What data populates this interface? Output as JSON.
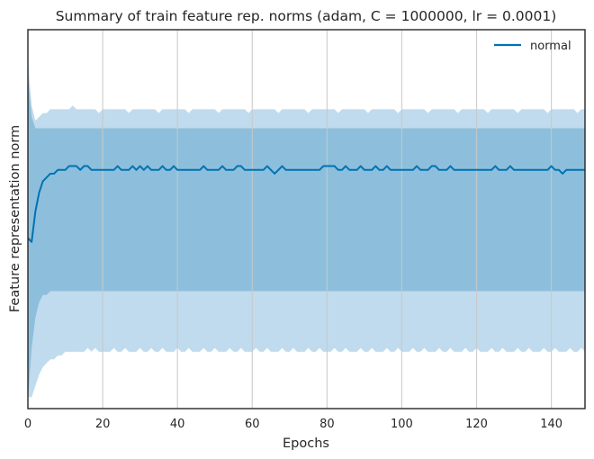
{
  "chart_data": {
    "type": "line",
    "title": "Summary of train feature rep. norms (adam, C = 1000000, lr = 0.0001)",
    "xlabel": "Epochs",
    "ylabel": "Feature representation norm",
    "xlim": [
      0,
      149
    ],
    "ylim": [
      0,
      1
    ],
    "x_ticks": [
      0,
      20,
      40,
      60,
      80,
      100,
      120,
      140
    ],
    "x_tick_labels": [
      "0",
      "20",
      "40",
      "60",
      "80",
      "100",
      "120",
      "140"
    ],
    "y_ticks_shown": false,
    "grid": "vertical",
    "legend_position": "top-right",
    "series": [
      {
        "name": "normal",
        "color": "#0072b2",
        "mean": [
          0.45,
          0.44,
          0.52,
          0.57,
          0.6,
          0.61,
          0.62,
          0.62,
          0.63,
          0.63,
          0.63,
          0.64,
          0.64,
          0.64,
          0.63,
          0.64,
          0.64,
          0.63,
          0.63,
          0.63,
          0.63,
          0.63,
          0.63,
          0.63,
          0.64,
          0.63,
          0.63,
          0.63,
          0.64,
          0.63,
          0.64,
          0.63,
          0.64,
          0.63,
          0.63,
          0.63,
          0.64,
          0.63,
          0.63,
          0.64,
          0.63,
          0.63,
          0.63,
          0.63,
          0.63,
          0.63,
          0.63,
          0.64,
          0.63,
          0.63,
          0.63,
          0.63,
          0.64,
          0.63,
          0.63,
          0.63,
          0.64,
          0.64,
          0.63,
          0.63,
          0.63,
          0.63,
          0.63,
          0.63,
          0.64,
          0.63,
          0.62,
          0.63,
          0.64,
          0.63,
          0.63,
          0.63,
          0.63,
          0.63,
          0.63,
          0.63,
          0.63,
          0.63,
          0.63,
          0.64,
          0.64,
          0.64,
          0.64,
          0.63,
          0.63,
          0.64,
          0.63,
          0.63,
          0.63,
          0.64,
          0.63,
          0.63,
          0.63,
          0.64,
          0.63,
          0.63,
          0.64,
          0.63,
          0.63,
          0.63,
          0.63,
          0.63,
          0.63,
          0.63,
          0.64,
          0.63,
          0.63,
          0.63,
          0.64,
          0.64,
          0.63,
          0.63,
          0.63,
          0.64,
          0.63,
          0.63,
          0.63,
          0.63,
          0.63,
          0.63,
          0.63,
          0.63,
          0.63,
          0.63,
          0.63,
          0.64,
          0.63,
          0.63,
          0.63,
          0.64,
          0.63,
          0.63,
          0.63,
          0.63,
          0.63,
          0.63,
          0.63,
          0.63,
          0.63,
          0.63,
          0.64,
          0.63,
          0.63,
          0.62,
          0.63,
          0.63,
          0.63,
          0.63,
          0.63,
          0.63
        ],
        "band_inner": {
          "lower": [
            0.02,
            0.16,
            0.24,
            0.28,
            0.3,
            0.3,
            0.31,
            0.31,
            0.31,
            0.31,
            0.31,
            0.31,
            0.31,
            0.31,
            0.31,
            0.31,
            0.31,
            0.31,
            0.31,
            0.31,
            0.31,
            0.31,
            0.31,
            0.31,
            0.31,
            0.31,
            0.31,
            0.31,
            0.31,
            0.31,
            0.31,
            0.31,
            0.31,
            0.31,
            0.31,
            0.31,
            0.31,
            0.31,
            0.31,
            0.31,
            0.31,
            0.31,
            0.31,
            0.31,
            0.31,
            0.31,
            0.31,
            0.31,
            0.31,
            0.31,
            0.31,
            0.31,
            0.31,
            0.31,
            0.31,
            0.31,
            0.31,
            0.31,
            0.31,
            0.31,
            0.31,
            0.31,
            0.31,
            0.31,
            0.31,
            0.31,
            0.31,
            0.31,
            0.31,
            0.31,
            0.31,
            0.31,
            0.31,
            0.31,
            0.31,
            0.31,
            0.31,
            0.31,
            0.31,
            0.31,
            0.31,
            0.31,
            0.31,
            0.31,
            0.31,
            0.31,
            0.31,
            0.31,
            0.31,
            0.31,
            0.31,
            0.31,
            0.31,
            0.31,
            0.31,
            0.31,
            0.31,
            0.31,
            0.31,
            0.31,
            0.31,
            0.31,
            0.31,
            0.31,
            0.31,
            0.31,
            0.31,
            0.31,
            0.31,
            0.31,
            0.31,
            0.31,
            0.31,
            0.31,
            0.31,
            0.31,
            0.31,
            0.31,
            0.31,
            0.31,
            0.31,
            0.31,
            0.31,
            0.31,
            0.31,
            0.31,
            0.31,
            0.31,
            0.31,
            0.31,
            0.31,
            0.31,
            0.31,
            0.31,
            0.31,
            0.31,
            0.31,
            0.31,
            0.31,
            0.31,
            0.31,
            0.31,
            0.31,
            0.31,
            0.31,
            0.31,
            0.31,
            0.31,
            0.31,
            0.31
          ],
          "upper": [
            0.88,
            0.77,
            0.74,
            0.74,
            0.74,
            0.74,
            0.74,
            0.74,
            0.74,
            0.74,
            0.74,
            0.74,
            0.74,
            0.74,
            0.74,
            0.74,
            0.74,
            0.74,
            0.74,
            0.74,
            0.74,
            0.74,
            0.74,
            0.74,
            0.74,
            0.74,
            0.74,
            0.74,
            0.74,
            0.74,
            0.74,
            0.74,
            0.74,
            0.74,
            0.74,
            0.74,
            0.74,
            0.74,
            0.74,
            0.74,
            0.74,
            0.74,
            0.74,
            0.74,
            0.74,
            0.74,
            0.74,
            0.74,
            0.74,
            0.74,
            0.74,
            0.74,
            0.74,
            0.74,
            0.74,
            0.74,
            0.74,
            0.74,
            0.74,
            0.74,
            0.74,
            0.74,
            0.74,
            0.74,
            0.74,
            0.74,
            0.74,
            0.74,
            0.74,
            0.74,
            0.74,
            0.74,
            0.74,
            0.74,
            0.74,
            0.74,
            0.74,
            0.74,
            0.74,
            0.74,
            0.74,
            0.74,
            0.74,
            0.74,
            0.74,
            0.74,
            0.74,
            0.74,
            0.74,
            0.74,
            0.74,
            0.74,
            0.74,
            0.74,
            0.74,
            0.74,
            0.74,
            0.74,
            0.74,
            0.74,
            0.74,
            0.74,
            0.74,
            0.74,
            0.74,
            0.74,
            0.74,
            0.74,
            0.74,
            0.74,
            0.74,
            0.74,
            0.74,
            0.74,
            0.74,
            0.74,
            0.74,
            0.74,
            0.74,
            0.74,
            0.74,
            0.74,
            0.74,
            0.74,
            0.74,
            0.74,
            0.74,
            0.74,
            0.74,
            0.74,
            0.74,
            0.74,
            0.74,
            0.74,
            0.74,
            0.74,
            0.74,
            0.74,
            0.74,
            0.74,
            0.74,
            0.74,
            0.74,
            0.74,
            0.74,
            0.74,
            0.74,
            0.74,
            0.74,
            0.74
          ]
        },
        "band_outer": {
          "lower": [
            0.03,
            0.03,
            0.06,
            0.09,
            0.11,
            0.12,
            0.13,
            0.13,
            0.14,
            0.14,
            0.15,
            0.15,
            0.15,
            0.15,
            0.15,
            0.15,
            0.16,
            0.15,
            0.16,
            0.15,
            0.15,
            0.15,
            0.15,
            0.16,
            0.15,
            0.15,
            0.16,
            0.15,
            0.15,
            0.15,
            0.16,
            0.15,
            0.15,
            0.16,
            0.15,
            0.15,
            0.16,
            0.15,
            0.15,
            0.15,
            0.16,
            0.15,
            0.15,
            0.16,
            0.15,
            0.15,
            0.15,
            0.16,
            0.15,
            0.15,
            0.16,
            0.15,
            0.15,
            0.15,
            0.16,
            0.15,
            0.15,
            0.16,
            0.15,
            0.15,
            0.15,
            0.16,
            0.15,
            0.15,
            0.16,
            0.15,
            0.15,
            0.15,
            0.16,
            0.15,
            0.15,
            0.16,
            0.15,
            0.15,
            0.15,
            0.16,
            0.15,
            0.15,
            0.16,
            0.15,
            0.15,
            0.15,
            0.16,
            0.15,
            0.15,
            0.16,
            0.15,
            0.15,
            0.15,
            0.16,
            0.15,
            0.15,
            0.16,
            0.15,
            0.15,
            0.15,
            0.16,
            0.15,
            0.15,
            0.16,
            0.15,
            0.15,
            0.15,
            0.16,
            0.15,
            0.15,
            0.16,
            0.15,
            0.15,
            0.15,
            0.16,
            0.15,
            0.15,
            0.16,
            0.15,
            0.15,
            0.15,
            0.16,
            0.15,
            0.15,
            0.16,
            0.15,
            0.15,
            0.15,
            0.16,
            0.15,
            0.15,
            0.16,
            0.15,
            0.15,
            0.15,
            0.16,
            0.15,
            0.15,
            0.16,
            0.15,
            0.15,
            0.15,
            0.16,
            0.15,
            0.15,
            0.16,
            0.15,
            0.15,
            0.15,
            0.16,
            0.15,
            0.15,
            0.16,
            0.15
          ],
          "upper": [
            0.92,
            0.8,
            0.76,
            0.77,
            0.78,
            0.78,
            0.79,
            0.79,
            0.79,
            0.79,
            0.79,
            0.79,
            0.8,
            0.79,
            0.79,
            0.79,
            0.79,
            0.79,
            0.79,
            0.78,
            0.79,
            0.79,
            0.79,
            0.79,
            0.79,
            0.79,
            0.79,
            0.78,
            0.79,
            0.79,
            0.79,
            0.79,
            0.79,
            0.79,
            0.79,
            0.78,
            0.79,
            0.79,
            0.79,
            0.79,
            0.79,
            0.79,
            0.79,
            0.78,
            0.79,
            0.79,
            0.79,
            0.79,
            0.79,
            0.79,
            0.79,
            0.78,
            0.79,
            0.79,
            0.79,
            0.79,
            0.79,
            0.79,
            0.79,
            0.78,
            0.79,
            0.79,
            0.79,
            0.79,
            0.79,
            0.79,
            0.79,
            0.78,
            0.79,
            0.79,
            0.79,
            0.79,
            0.79,
            0.79,
            0.79,
            0.78,
            0.79,
            0.79,
            0.79,
            0.79,
            0.79,
            0.79,
            0.79,
            0.78,
            0.79,
            0.79,
            0.79,
            0.79,
            0.79,
            0.79,
            0.79,
            0.78,
            0.79,
            0.79,
            0.79,
            0.79,
            0.79,
            0.79,
            0.79,
            0.78,
            0.79,
            0.79,
            0.79,
            0.79,
            0.79,
            0.79,
            0.79,
            0.78,
            0.79,
            0.79,
            0.79,
            0.79,
            0.79,
            0.79,
            0.79,
            0.78,
            0.79,
            0.79,
            0.79,
            0.79,
            0.79,
            0.79,
            0.79,
            0.78,
            0.79,
            0.79,
            0.79,
            0.79,
            0.79,
            0.79,
            0.79,
            0.78,
            0.79,
            0.79,
            0.79,
            0.79,
            0.79,
            0.79,
            0.79,
            0.78,
            0.79,
            0.79,
            0.79,
            0.79,
            0.79,
            0.79,
            0.79,
            0.78,
            0.79,
            0.79
          ]
        }
      }
    ],
    "colors": {
      "line": "#0072b2",
      "band_inner": "#8dbfdc",
      "band_outer": "#c0dbed",
      "grid": "#c8c8c8",
      "frame": "#262626"
    }
  }
}
